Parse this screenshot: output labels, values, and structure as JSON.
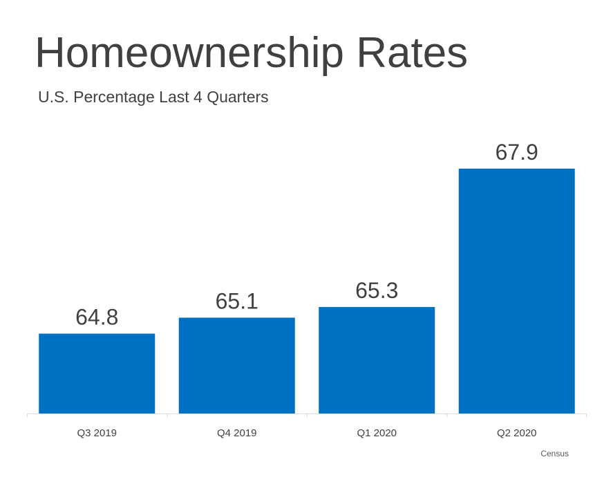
{
  "chart_data": {
    "type": "bar",
    "title": "Homeownership Rates",
    "subtitle": "U.S. Percentage Last 4 Quarters",
    "categories": [
      "Q3 2019",
      "Q4 2019",
      "Q1 2020",
      "Q2 2020"
    ],
    "values": [
      64.8,
      65.1,
      65.3,
      67.9
    ],
    "data_labels": [
      "64.8",
      "65.1",
      "65.3",
      "67.9"
    ],
    "ylim": [
      63.3,
      68.6
    ],
    "grid": false,
    "legend": "none",
    "bar_color": "#0070C0",
    "source": "Census"
  }
}
